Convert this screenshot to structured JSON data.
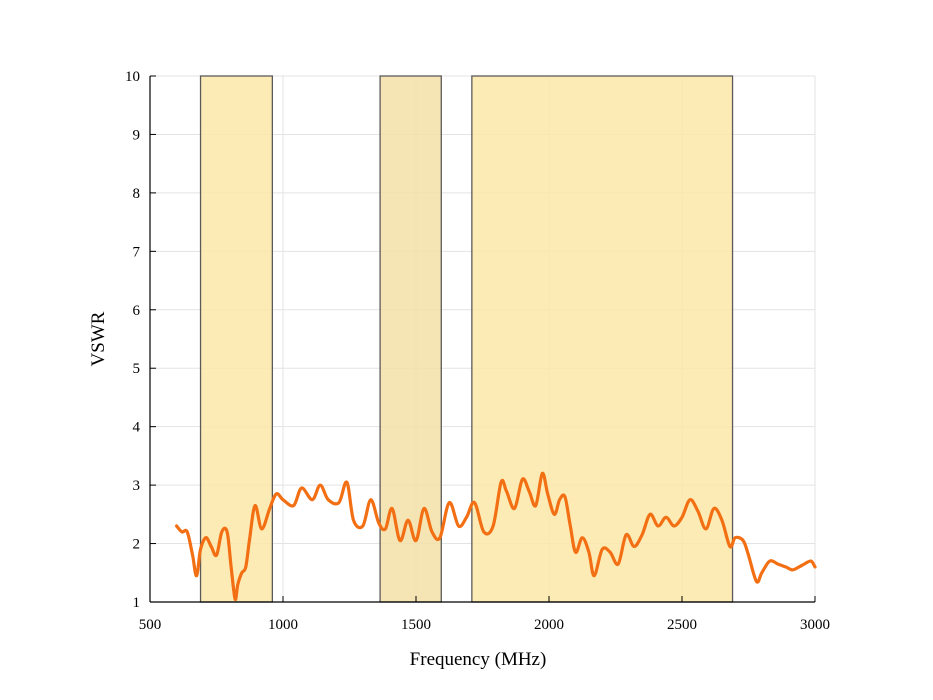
{
  "chart_data": {
    "type": "line",
    "title": "",
    "xlabel": "Frequency (MHz)",
    "ylabel": "VSWR",
    "xlim": [
      500,
      3000
    ],
    "ylim": [
      1,
      10
    ],
    "grid": true,
    "xticks": [
      500,
      1000,
      1500,
      2000,
      2500,
      3000
    ],
    "yticks": [
      1,
      2,
      3,
      4,
      5,
      6,
      7,
      8,
      9,
      10
    ],
    "bands": [
      {
        "name": "band-1",
        "x_start": 690,
        "x_end": 960,
        "color": "#fde8a8"
      },
      {
        "name": "band-2",
        "x_start": 1365,
        "x_end": 1595,
        "color": "#f3e1a8"
      },
      {
        "name": "band-3",
        "x_start": 1710,
        "x_end": 2690,
        "color": "#fde8a8"
      }
    ],
    "series": [
      {
        "name": "VSWR",
        "color": "#f36f13",
        "x": [
          600,
          620,
          640,
          660,
          675,
          690,
          710,
          730,
          750,
          770,
          790,
          805,
          820,
          830,
          845,
          860,
          875,
          895,
          920,
          950,
          975,
          1000,
          1040,
          1070,
          1110,
          1140,
          1170,
          1210,
          1240,
          1265,
          1300,
          1330,
          1360,
          1385,
          1410,
          1440,
          1470,
          1500,
          1530,
          1560,
          1590,
          1625,
          1660,
          1690,
          1720,
          1755,
          1790,
          1820,
          1840,
          1870,
          1900,
          1925,
          1950,
          1975,
          1995,
          2020,
          2040,
          2060,
          2080,
          2100,
          2125,
          2150,
          2170,
          2200,
          2230,
          2260,
          2290,
          2320,
          2350,
          2380,
          2410,
          2440,
          2470,
          2500,
          2530,
          2560,
          2590,
          2620,
          2650,
          2680,
          2700,
          2730,
          2750,
          2780,
          2800,
          2830,
          2860,
          2890,
          2915,
          2940,
          2960,
          2985,
          3000
        ],
        "values": [
          2.3,
          2.2,
          2.2,
          1.8,
          1.45,
          1.9,
          2.1,
          1.95,
          1.8,
          2.2,
          2.2,
          1.6,
          1.05,
          1.3,
          1.5,
          1.6,
          2.1,
          2.65,
          2.25,
          2.6,
          2.85,
          2.75,
          2.65,
          2.95,
          2.75,
          3.0,
          2.75,
          2.7,
          3.05,
          2.4,
          2.3,
          2.75,
          2.35,
          2.25,
          2.6,
          2.05,
          2.4,
          2.05,
          2.6,
          2.2,
          2.1,
          2.7,
          2.3,
          2.45,
          2.7,
          2.2,
          2.3,
          3.05,
          2.9,
          2.6,
          3.1,
          2.9,
          2.65,
          3.2,
          2.85,
          2.5,
          2.75,
          2.8,
          2.3,
          1.85,
          2.1,
          1.85,
          1.45,
          1.9,
          1.85,
          1.65,
          2.15,
          1.95,
          2.15,
          2.5,
          2.3,
          2.45,
          2.3,
          2.45,
          2.75,
          2.55,
          2.25,
          2.6,
          2.4,
          1.95,
          2.1,
          2.05,
          1.8,
          1.35,
          1.5,
          1.7,
          1.65,
          1.6,
          1.55,
          1.6,
          1.65,
          1.7,
          1.6
        ]
      }
    ]
  }
}
